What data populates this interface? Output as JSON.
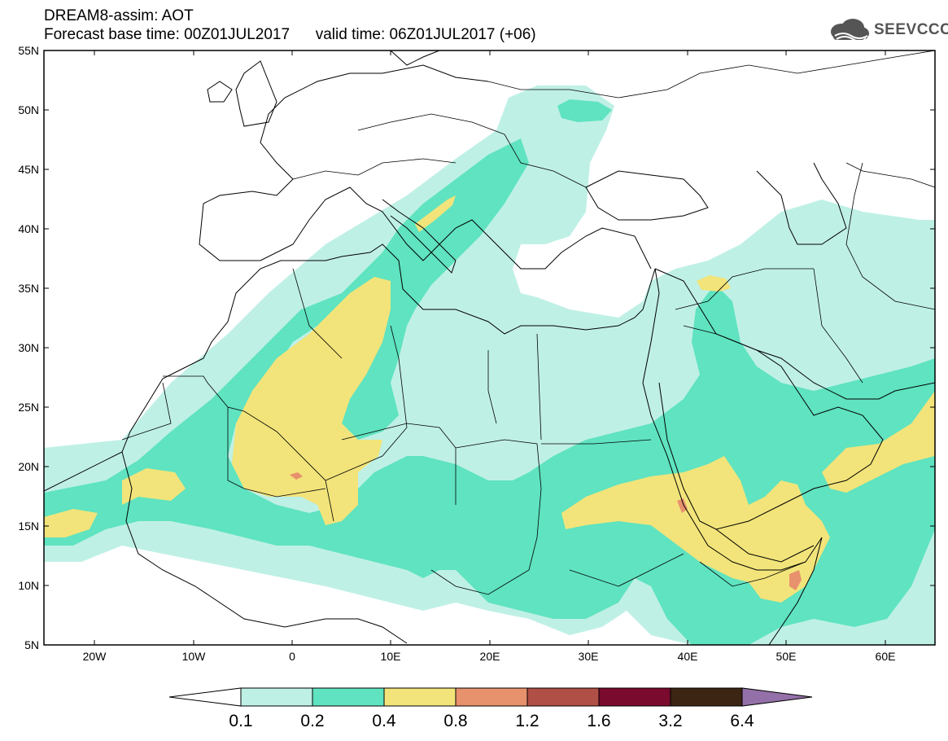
{
  "header": {
    "title_line1": "DREAM8-assim: AOT",
    "title_line2": "Forecast base time: 00Z01JUL2017      valid time: 06Z01JUL2017 (+06)"
  },
  "logo": {
    "text": "SEEVCCC",
    "icon": "cloud-icon"
  },
  "map": {
    "lat_labels": [
      "55N",
      "50N",
      "45N",
      "40N",
      "35N",
      "30N",
      "25N",
      "20N",
      "15N",
      "10N",
      "5N"
    ],
    "lon_labels": [
      "20W",
      "10W",
      "0",
      "10E",
      "20E",
      "30E",
      "40E",
      "50E",
      "60E"
    ],
    "colors": {
      "c01": "#bff0e6",
      "c02": "#5fe3c0",
      "c04": "#f2e47a",
      "c08": "#e8916d",
      "c12": "#b04f45",
      "c16": "#7a0a2e",
      "c32": "#3c2512",
      "c64": "#9470a8",
      "coast": "#000000"
    }
  },
  "colorbar": {
    "labels": [
      "0.1",
      "0.2",
      "0.4",
      "0.8",
      "1.2",
      "1.6",
      "3.2",
      "6.4"
    ],
    "colors": [
      "#bff0e6",
      "#5fe3c0",
      "#f2e47a",
      "#e8916d",
      "#b04f45",
      "#7a0a2e",
      "#3c2512",
      "#9470a8"
    ]
  }
}
